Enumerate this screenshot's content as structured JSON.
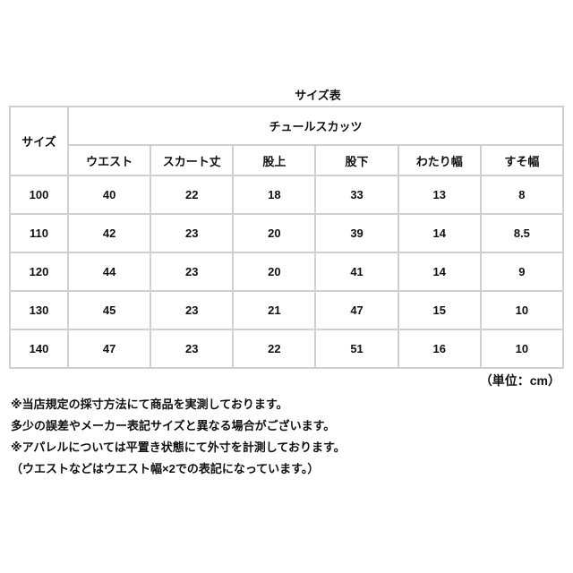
{
  "title": "サイズ表",
  "table": {
    "size_header": "サイズ",
    "product_name": "チュールスカッツ",
    "columns": [
      "ウエスト",
      "スカート丈",
      "股上",
      "股下",
      "わたり幅",
      "すそ幅"
    ],
    "rows": [
      [
        "100",
        "40",
        "22",
        "18",
        "33",
        "13",
        "8"
      ],
      [
        "110",
        "42",
        "23",
        "20",
        "39",
        "14",
        "8.5"
      ],
      [
        "120",
        "44",
        "23",
        "20",
        "41",
        "14",
        "9"
      ],
      [
        "130",
        "45",
        "23",
        "21",
        "47",
        "15",
        "10"
      ],
      [
        "140",
        "47",
        "23",
        "22",
        "51",
        "16",
        "10"
      ]
    ]
  },
  "unit": "（単位：cm）",
  "notes": [
    "※当店規定の採寸方法にて商品を実測しております。",
    "多少の誤差やメーカー表記サイズと異なる場合がございます。",
    "※アパレルについては平置き状態にて外寸を計測しております。",
    "（ウエストなどはウエスト幅×2での表記になっています。）"
  ]
}
